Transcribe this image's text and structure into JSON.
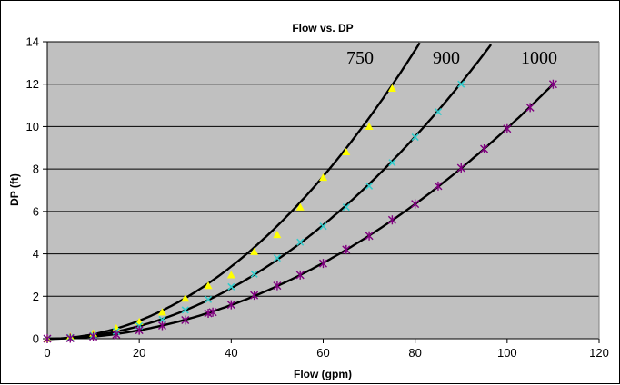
{
  "chart_data": {
    "type": "scatter",
    "title": "Flow vs. DP",
    "xlabel": "Flow (gpm)",
    "ylabel": "DP (ft)",
    "xlim": [
      0,
      120
    ],
    "ylim": [
      0,
      14
    ],
    "x_ticks": [
      0,
      20,
      40,
      60,
      80,
      100,
      120
    ],
    "y_ticks": [
      0,
      2,
      4,
      6,
      8,
      10,
      12,
      14
    ],
    "grid": "horizontal",
    "background": "#c0c0c0",
    "curve_labels": [
      "750",
      "900",
      "1000"
    ],
    "series": [
      {
        "name": "750",
        "marker": "triangle",
        "color": "#ffff00",
        "x": [
          0,
          5,
          10,
          15,
          20,
          25,
          30,
          35,
          40,
          45,
          50,
          55,
          60,
          65,
          70,
          75
        ],
        "y": [
          0,
          0.1,
          0.25,
          0.5,
          0.8,
          1.25,
          1.9,
          2.5,
          3.0,
          4.1,
          4.9,
          6.2,
          7.6,
          8.8,
          10.0,
          11.8
        ]
      },
      {
        "name": "900",
        "marker": "cross",
        "color": "#33cccc",
        "x": [
          0,
          5,
          10,
          15,
          20,
          25,
          30,
          35,
          40,
          45,
          50,
          55,
          60,
          65,
          70,
          75,
          80,
          85,
          90
        ],
        "y": [
          0,
          0.05,
          0.15,
          0.35,
          0.6,
          0.9,
          1.35,
          1.85,
          2.45,
          3.05,
          3.8,
          4.55,
          5.3,
          6.2,
          7.2,
          8.3,
          9.5,
          10.7,
          12.0
        ]
      },
      {
        "name": "1000",
        "marker": "asterisk",
        "color": "#800080",
        "x": [
          0,
          5,
          10,
          15,
          20,
          25,
          30,
          35,
          36,
          40,
          45,
          50,
          55,
          60,
          65,
          70,
          75,
          80,
          85,
          90,
          95,
          100,
          105,
          110
        ],
        "y": [
          0,
          0.02,
          0.1,
          0.2,
          0.4,
          0.62,
          0.88,
          1.2,
          1.25,
          1.6,
          2.05,
          2.5,
          3.0,
          3.55,
          4.2,
          4.85,
          5.6,
          6.35,
          7.2,
          8.05,
          8.95,
          9.9,
          10.9,
          12.0
        ]
      }
    ],
    "trendlines": [
      {
        "name": "750",
        "color": "#000000",
        "coef": 0.002126,
        "xmax": 83
      },
      {
        "name": "900",
        "color": "#000000",
        "coef": 0.001489,
        "xmax": 99
      },
      {
        "name": "1000",
        "color": "#000000",
        "coef": 0.000992,
        "xmax": 110
      }
    ]
  }
}
